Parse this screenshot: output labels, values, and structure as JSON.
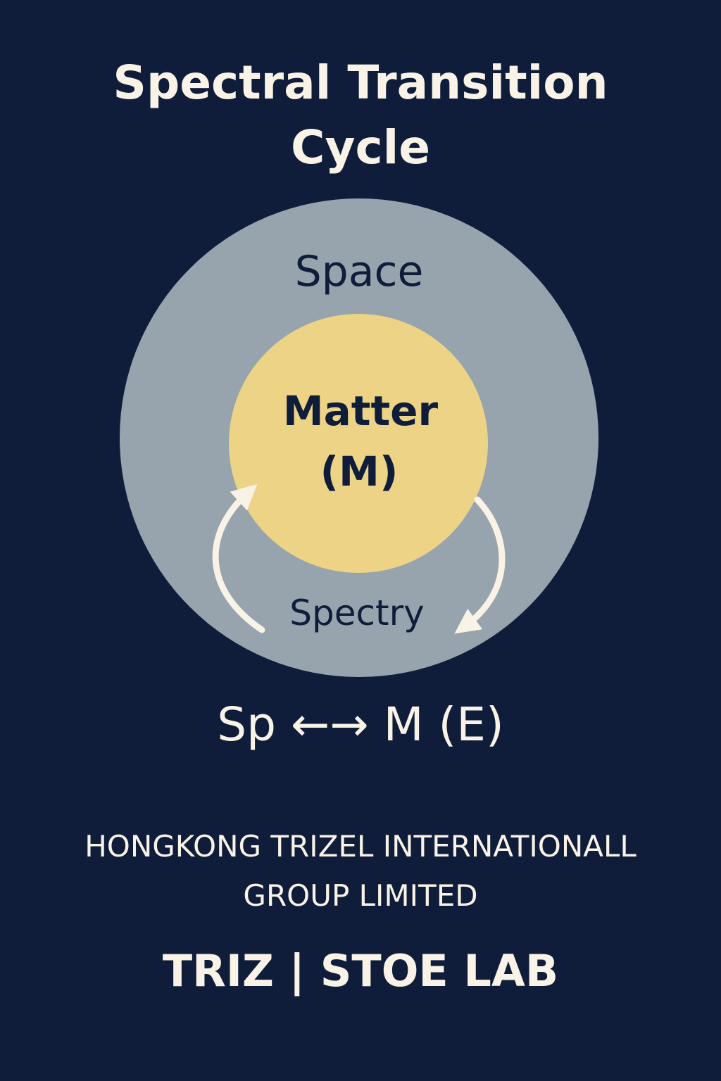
{
  "title": {
    "line1": "Spectral Transition",
    "line2": "Cycle"
  },
  "diagram": {
    "outer_label": "Space",
    "inner_label_line1": "Matter",
    "inner_label_line2": "(M)",
    "bottom_label": "Spectry"
  },
  "equation": {
    "left": "Sp",
    "arrow": "←→",
    "right": "M (E)"
  },
  "company": {
    "line1": "HONGKONG TRIZEL INTERNATIONALL",
    "line2": "GROUP LIMITED"
  },
  "lab": "TRIZ | STOE LAB",
  "colors": {
    "background": "#0f1d3b",
    "outer_circle": "#97a3ad",
    "inner_circle": "#ecd386",
    "text_light": "#f8f3e6",
    "text_dark": "#0f1d3b"
  }
}
